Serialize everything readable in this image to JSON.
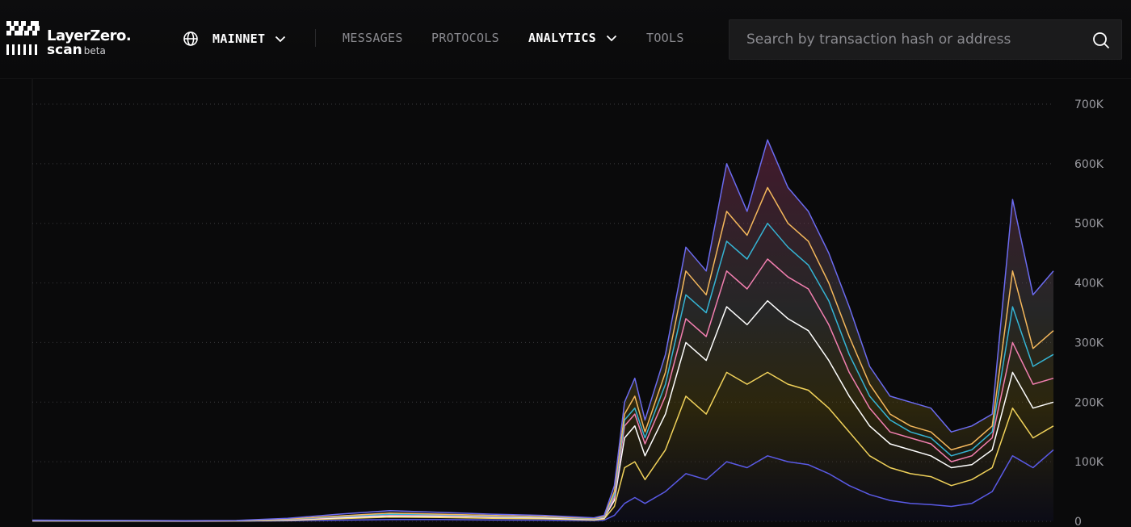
{
  "header": {
    "logo": {
      "brand": "LayerZero.",
      "sub": "scan",
      "badge": "beta"
    },
    "network": {
      "label": "MAINNET",
      "icon": "globe-icon"
    },
    "nav": [
      {
        "label": "MESSAGES",
        "active": false
      },
      {
        "label": "PROTOCOLS",
        "active": false
      },
      {
        "label": "ANALYTICS",
        "active": true
      },
      {
        "label": "TOOLS",
        "active": false
      }
    ],
    "search": {
      "placeholder": "Search by transaction hash or address",
      "icon": "search-icon"
    }
  },
  "chart_data": {
    "type": "line",
    "title": "",
    "xlabel": "",
    "ylabel": "",
    "ylim": [
      0,
      700000
    ],
    "yticks": [
      0,
      100000,
      200000,
      300000,
      400000,
      500000,
      600000,
      700000
    ],
    "ytick_labels": [
      "0",
      "100K",
      "200K",
      "300K",
      "400K",
      "500K",
      "600K",
      "700K"
    ],
    "grid": true,
    "legend": "none",
    "x": [
      0,
      5,
      10,
      15,
      20,
      25,
      30,
      35,
      40,
      45,
      50,
      55,
      56,
      57,
      58,
      59,
      60,
      62,
      64,
      66,
      68,
      70,
      72,
      74,
      76,
      78,
      80,
      82,
      84,
      86,
      88,
      90,
      92,
      94,
      96,
      98,
      100
    ],
    "series": [
      {
        "color": "#6b6bf0",
        "values": [
          2000,
          1800,
          1500,
          1200,
          1500,
          5000,
          12000,
          18000,
          15000,
          12000,
          10000,
          6000,
          10000,
          60000,
          200000,
          240000,
          170000,
          280000,
          460000,
          420000,
          600000,
          520000,
          640000,
          560000,
          520000,
          450000,
          360000,
          260000,
          210000,
          200000,
          190000,
          150000,
          160000,
          180000,
          540000,
          380000,
          420000
        ]
      },
      {
        "color": "#f5b85c",
        "values": [
          1500,
          1300,
          1200,
          1000,
          1200,
          4000,
          9000,
          14000,
          12000,
          10000,
          8000,
          5000,
          8000,
          50000,
          180000,
          210000,
          150000,
          250000,
          420000,
          380000,
          520000,
          480000,
          560000,
          500000,
          470000,
          400000,
          310000,
          230000,
          180000,
          160000,
          150000,
          120000,
          130000,
          160000,
          420000,
          290000,
          320000
        ]
      },
      {
        "color": "#35b4d4",
        "values": [
          1300,
          1200,
          1100,
          900,
          1100,
          3500,
          8000,
          12000,
          11000,
          9000,
          7500,
          4500,
          7000,
          45000,
          170000,
          190000,
          140000,
          230000,
          380000,
          350000,
          470000,
          440000,
          500000,
          460000,
          430000,
          370000,
          280000,
          210000,
          170000,
          150000,
          140000,
          110000,
          120000,
          150000,
          360000,
          260000,
          280000
        ]
      },
      {
        "color": "#f27fb0",
        "values": [
          1200,
          1100,
          1000,
          800,
          1000,
          3000,
          7000,
          11000,
          10000,
          8000,
          7000,
          4000,
          6500,
          40000,
          160000,
          180000,
          130000,
          210000,
          340000,
          310000,
          420000,
          390000,
          440000,
          410000,
          390000,
          330000,
          250000,
          190000,
          150000,
          140000,
          130000,
          100000,
          110000,
          140000,
          300000,
          230000,
          240000
        ]
      },
      {
        "color": "#ffffff",
        "values": [
          1000,
          900,
          800,
          700,
          900,
          2500,
          6000,
          9000,
          8500,
          7000,
          6000,
          3500,
          5500,
          35000,
          140000,
          160000,
          110000,
          180000,
          300000,
          270000,
          360000,
          330000,
          370000,
          340000,
          320000,
          270000,
          210000,
          160000,
          130000,
          120000,
          110000,
          90000,
          95000,
          120000,
          250000,
          190000,
          200000
        ]
      },
      {
        "color": "#f1d25a",
        "values": [
          700,
          600,
          600,
          500,
          600,
          1800,
          4500,
          7000,
          6500,
          5000,
          4500,
          2500,
          4000,
          25000,
          90000,
          100000,
          70000,
          120000,
          210000,
          180000,
          250000,
          230000,
          250000,
          230000,
          220000,
          190000,
          150000,
          110000,
          90000,
          80000,
          75000,
          60000,
          70000,
          90000,
          190000,
          140000,
          160000
        ]
      },
      {
        "color": "#5a5ae6",
        "values": [
          300,
          300,
          300,
          200,
          300,
          800,
          2000,
          3000,
          3000,
          2500,
          2000,
          1200,
          2000,
          10000,
          30000,
          40000,
          30000,
          50000,
          80000,
          70000,
          100000,
          90000,
          110000,
          100000,
          95000,
          80000,
          60000,
          45000,
          35000,
          30000,
          28000,
          25000,
          30000,
          50000,
          110000,
          90000,
          120000
        ]
      }
    ]
  }
}
